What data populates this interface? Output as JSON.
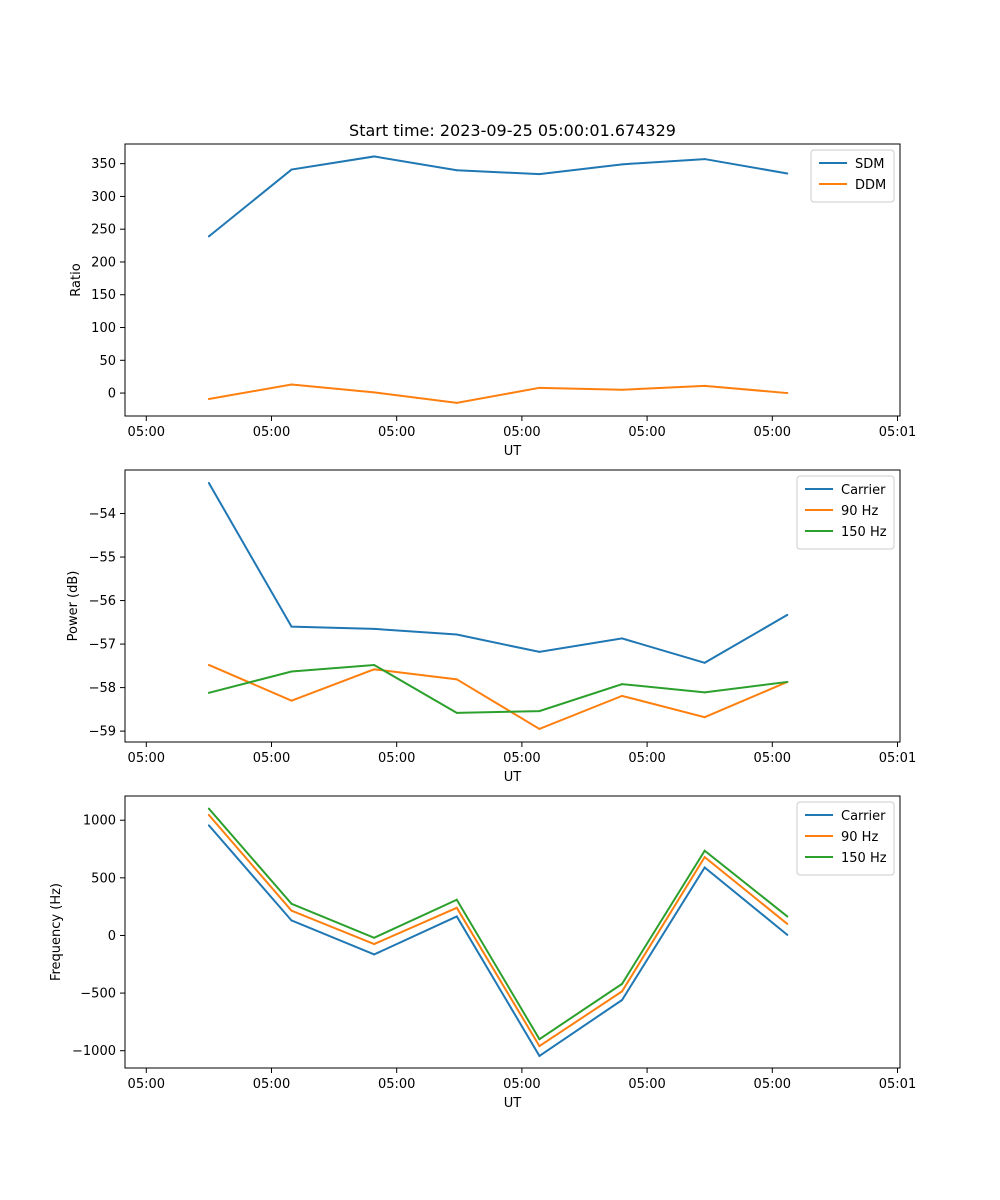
{
  "chart_data": [
    {
      "type": "line",
      "title": "Start time: 2023-09-25 05:00:01.674329",
      "xlabel": "UT",
      "ylabel": "Ratio",
      "x_tick_labels": [
        "05:00",
        "05:00",
        "05:00",
        "05:00",
        "05:00",
        "05:00",
        "05:01"
      ],
      "x_tick_positions": [
        0.0,
        1.0,
        2.0,
        3.0,
        4.0,
        5.0,
        6.0
      ],
      "x": [
        0.5,
        1.16,
        1.82,
        2.48,
        3.14,
        3.8,
        4.46,
        5.12
      ],
      "xlim": [
        -0.17,
        6.02
      ],
      "ylim": [
        -35,
        380
      ],
      "y_ticks": [
        0,
        50,
        100,
        150,
        200,
        250,
        300,
        350
      ],
      "series": [
        {
          "name": "SDM",
          "color": "#1f77b4",
          "values": [
            239,
            341,
            361,
            340,
            334,
            349,
            357,
            335
          ]
        },
        {
          "name": "DDM",
          "color": "#ff7f0e",
          "values": [
            -9,
            13,
            1,
            -15,
            8,
            5,
            11,
            0
          ]
        }
      ],
      "legend": "top-right"
    },
    {
      "type": "line",
      "title": "",
      "xlabel": "UT",
      "ylabel": "Power (dB)",
      "x_tick_labels": [
        "05:00",
        "05:00",
        "05:00",
        "05:00",
        "05:00",
        "05:00",
        "05:01"
      ],
      "x_tick_positions": [
        0.0,
        1.0,
        2.0,
        3.0,
        4.0,
        5.0,
        6.0
      ],
      "x": [
        0.5,
        1.16,
        1.82,
        2.48,
        3.14,
        3.8,
        4.46,
        5.12
      ],
      "xlim": [
        -0.17,
        6.02
      ],
      "ylim": [
        -59.25,
        -53.0
      ],
      "y_ticks": [
        -59,
        -58,
        -57,
        -56,
        -55,
        -54
      ],
      "series": [
        {
          "name": "Carrier",
          "color": "#1f77b4",
          "values": [
            -53.3,
            -56.6,
            -56.65,
            -56.78,
            -57.18,
            -56.87,
            -57.43,
            -56.33
          ]
        },
        {
          "name": "90 Hz",
          "color": "#ff7f0e",
          "values": [
            -57.48,
            -58.3,
            -57.58,
            -57.81,
            -58.95,
            -58.19,
            -58.68,
            -57.87
          ]
        },
        {
          "name": "150 Hz",
          "color": "#2ca02c",
          "values": [
            -58.12,
            -57.63,
            -57.48,
            -58.58,
            -58.54,
            -57.92,
            -58.11,
            -57.87
          ]
        }
      ],
      "legend": "top-right"
    },
    {
      "type": "line",
      "title": "",
      "xlabel": "UT",
      "ylabel": "Frequency (Hz)",
      "x_tick_labels": [
        "05:00",
        "05:00",
        "05:00",
        "05:00",
        "05:00",
        "05:00",
        "05:01"
      ],
      "x_tick_positions": [
        0.0,
        1.0,
        2.0,
        3.0,
        4.0,
        5.0,
        6.0
      ],
      "x": [
        0.5,
        1.16,
        1.82,
        2.48,
        3.14,
        3.8,
        4.46,
        5.12
      ],
      "xlim": [
        -0.17,
        6.02
      ],
      "ylim": [
        -1150,
        1210
      ],
      "y_ticks": [
        -1000,
        -500,
        0,
        500,
        1000
      ],
      "series": [
        {
          "name": "Carrier",
          "color": "#1f77b4",
          "values": [
            955,
            130,
            -165,
            165,
            -1045,
            -560,
            590,
            5
          ]
        },
        {
          "name": "90 Hz",
          "color": "#ff7f0e",
          "values": [
            1045,
            215,
            -75,
            240,
            -960,
            -485,
            680,
            100
          ]
        },
        {
          "name": "150 Hz",
          "color": "#2ca02c",
          "values": [
            1100,
            275,
            -20,
            310,
            -900,
            -420,
            735,
            165
          ]
        }
      ],
      "legend": "top-right"
    }
  ]
}
